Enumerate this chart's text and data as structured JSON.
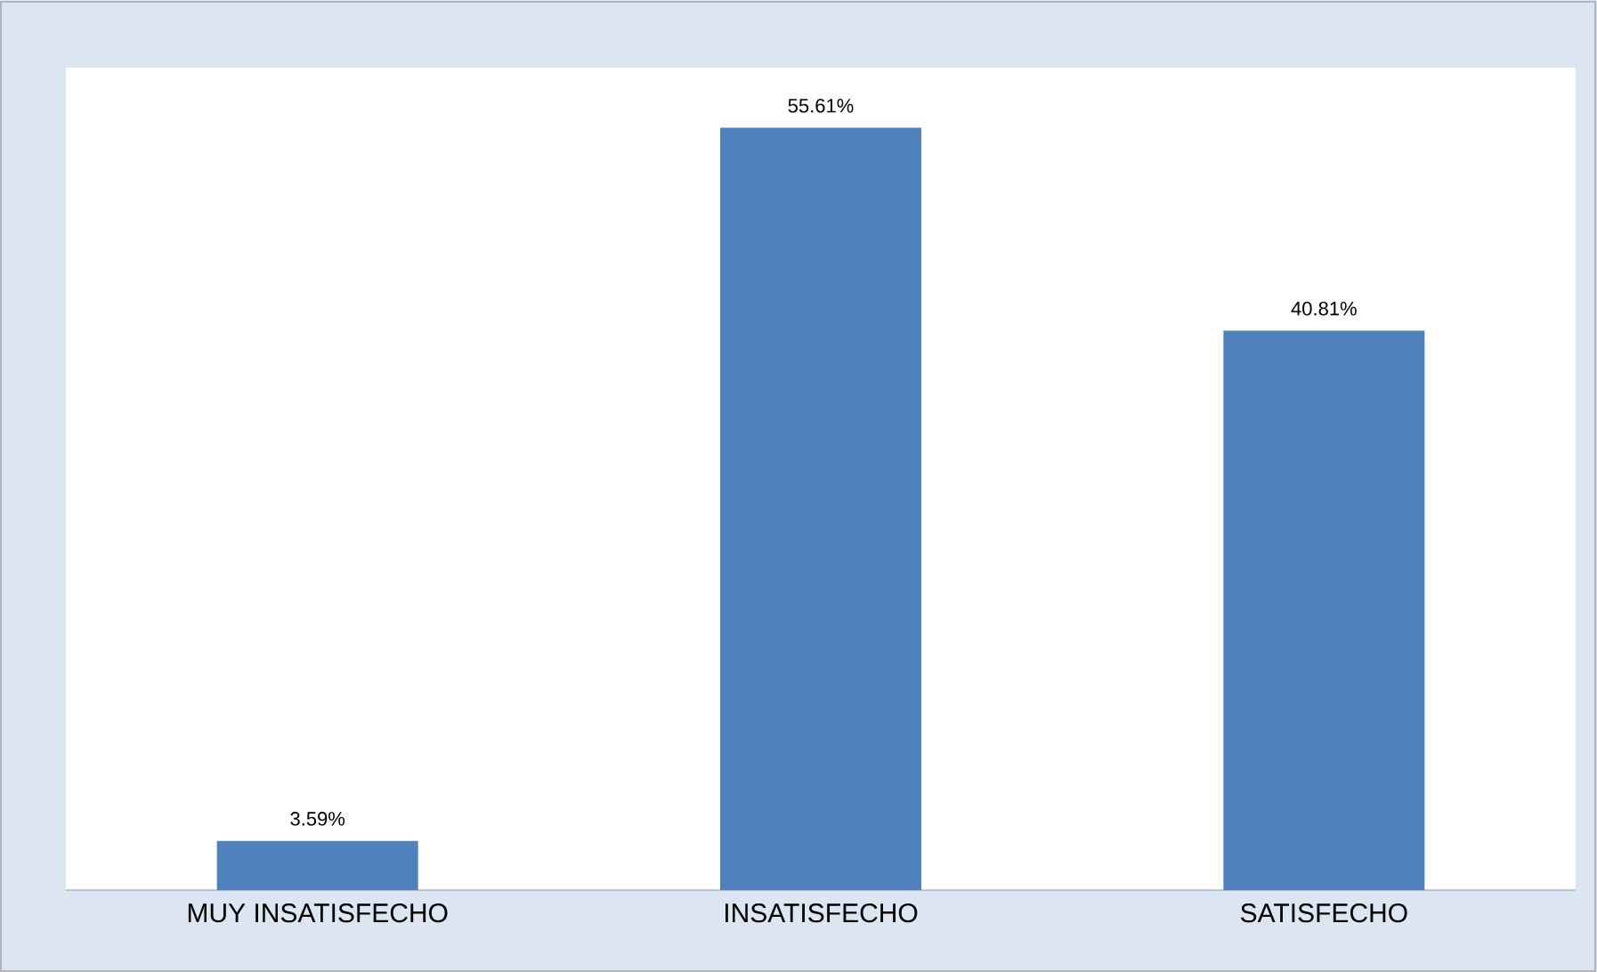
{
  "chart_data": {
    "type": "bar",
    "categories": [
      "MUY INSATISFECHO",
      "INSATISFECHO",
      "SATISFECHO"
    ],
    "values": [
      3.59,
      55.61,
      40.81
    ],
    "value_labels": [
      "3.59%",
      "55.61%",
      "40.81%"
    ],
    "color": "#4f81bd",
    "ylim": [
      0,
      60
    ]
  }
}
